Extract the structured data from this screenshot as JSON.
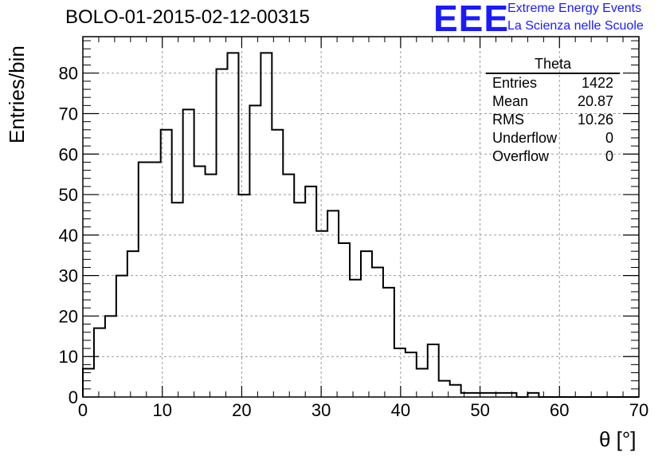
{
  "header": {
    "title": "BOLO-01-2015-02-12-00315",
    "logo_text": "EEE",
    "logo_line1": "Extreme Energy Events",
    "logo_line2": "La Scienza nelle Scuole",
    "logo_color": "#1a1aff"
  },
  "stats": {
    "title": "Theta",
    "rows": [
      {
        "label": "Entries",
        "value": "1422"
      },
      {
        "label": "Mean",
        "value": "20.87"
      },
      {
        "label": "RMS",
        "value": "10.26"
      },
      {
        "label": "Underflow",
        "value": "0"
      },
      {
        "label": "Overflow",
        "value": "0"
      }
    ]
  },
  "chart_data": {
    "type": "bar",
    "style": "step-histogram",
    "xlabel": "θ [°]",
    "ylabel": "Entries/bin",
    "xlim": [
      0,
      70
    ],
    "ylim": [
      0,
      89
    ],
    "bin_width": 1.4,
    "bin_edges_start": 0,
    "values": [
      7,
      17,
      20,
      30,
      36,
      58,
      58,
      66,
      48,
      71,
      57,
      55,
      81,
      85,
      50,
      72,
      85,
      66,
      55,
      48,
      52,
      41,
      46,
      38,
      29,
      36,
      32,
      27,
      12,
      11,
      7,
      13,
      4,
      3,
      1,
      1,
      1,
      1,
      1,
      0,
      1,
      0,
      0,
      0,
      0,
      0,
      0,
      0,
      0,
      0
    ],
    "x_ticks": [
      "0",
      "10",
      "20",
      "30",
      "40",
      "50",
      "60",
      "70"
    ],
    "y_ticks": [
      "0",
      "10",
      "20",
      "30",
      "40",
      "50",
      "60",
      "70",
      "80"
    ],
    "grid": true,
    "legend": "top-right"
  }
}
